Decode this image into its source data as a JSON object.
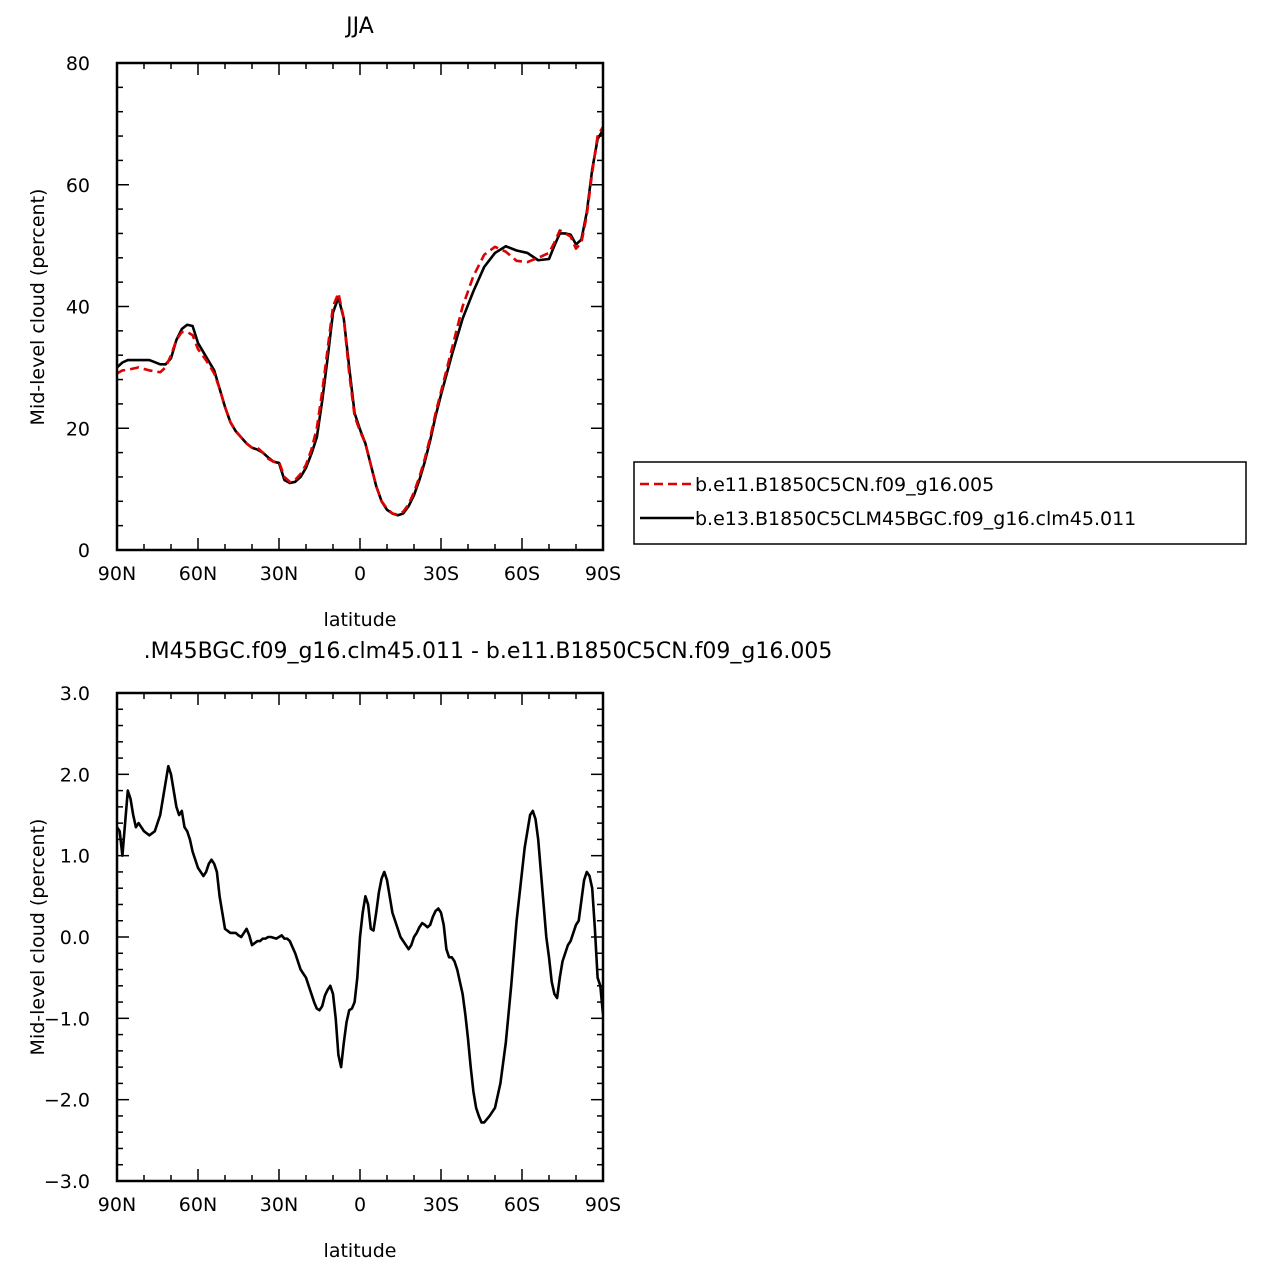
{
  "chart_data": [
    {
      "type": "line",
      "title": "JJA",
      "xlabel": "latitude",
      "ylabel": "Mid-level cloud (percent)",
      "xlim": [
        90,
        -90
      ],
      "ylim": [
        0,
        80
      ],
      "x_ticks": [
        {
          "value": 90,
          "label": "90N"
        },
        {
          "value": 60,
          "label": "60N"
        },
        {
          "value": 30,
          "label": "30N"
        },
        {
          "value": 0,
          "label": "0"
        },
        {
          "value": -30,
          "label": "30S"
        },
        {
          "value": -60,
          "label": "60S"
        },
        {
          "value": -90,
          "label": "90S"
        }
      ],
      "y_ticks": [
        {
          "value": 0,
          "label": "0"
        },
        {
          "value": 20,
          "label": "20"
        },
        {
          "value": 40,
          "label": "40"
        },
        {
          "value": 60,
          "label": "60"
        },
        {
          "value": 80,
          "label": "80"
        }
      ],
      "legend_position": "right",
      "series": [
        {
          "name": "b.e11.B1850C5CN.f09_g16.005",
          "color": "#e00000",
          "dash": "dashed",
          "x": [
            90,
            88,
            86,
            82,
            78,
            74,
            72,
            70,
            68,
            66,
            64,
            62,
            60,
            58,
            56,
            54,
            52,
            50,
            48,
            46,
            44,
            42,
            40,
            38,
            36,
            34,
            32,
            30,
            28,
            26,
            24,
            22,
            20,
            18,
            16,
            14,
            12,
            10,
            8,
            6,
            4,
            2,
            0,
            -2,
            -4,
            -6,
            -8,
            -10,
            -12,
            -14,
            -16,
            -18,
            -20,
            -22,
            -24,
            -26,
            -28,
            -30,
            -34,
            -38,
            -42,
            -46,
            -50,
            -54,
            -58,
            -62,
            -66,
            -70,
            -72,
            -74,
            -76,
            -78,
            -80,
            -82,
            -84,
            -86,
            -88,
            -90
          ],
          "values": [
            29.0,
            29.5,
            29.6,
            30.0,
            29.5,
            29.2,
            30.0,
            32.0,
            34.5,
            35.8,
            35.8,
            35.3,
            33.0,
            31.8,
            30.5,
            29.0,
            26.5,
            23.5,
            21.0,
            19.5,
            18.5,
            17.5,
            16.8,
            16.8,
            16.0,
            15.0,
            14.5,
            14.5,
            12.0,
            11.2,
            11.5,
            12.5,
            14.0,
            16.5,
            20.0,
            26.0,
            33.0,
            40.0,
            42.2,
            38.0,
            29.0,
            22.0,
            19.5,
            17.5,
            14.0,
            10.5,
            8.0,
            6.8,
            6.0,
            5.8,
            6.3,
            7.5,
            9.5,
            12.0,
            15.0,
            18.5,
            22.5,
            26.0,
            33.0,
            40.0,
            45.0,
            48.5,
            49.8,
            49.0,
            47.5,
            47.3,
            48.0,
            48.8,
            50.5,
            52.5,
            52.0,
            51.5,
            49.5,
            50.5,
            55.0,
            62.0,
            68.0,
            69.5
          ]
        },
        {
          "name": "b.e13.B1850C5CLM45BGC.f09_g16.clm45.011",
          "color": "#000000",
          "dash": "solid",
          "x": [
            90,
            88,
            86,
            82,
            78,
            74,
            72,
            70,
            68,
            66,
            64,
            62,
            60,
            58,
            56,
            54,
            52,
            50,
            48,
            46,
            44,
            42,
            40,
            38,
            36,
            34,
            32,
            30,
            28,
            26,
            24,
            22,
            20,
            18,
            16,
            14,
            12,
            10,
            8,
            6,
            4,
            2,
            0,
            -2,
            -4,
            -6,
            -8,
            -10,
            -12,
            -14,
            -16,
            -18,
            -20,
            -22,
            -24,
            -26,
            -28,
            -30,
            -34,
            -38,
            -42,
            -46,
            -50,
            -54,
            -58,
            -62,
            -66,
            -70,
            -72,
            -74,
            -76,
            -78,
            -80,
            -82,
            -84,
            -86,
            -88,
            -90
          ],
          "values": [
            30.0,
            30.8,
            31.2,
            31.2,
            31.2,
            30.5,
            30.5,
            31.5,
            34.5,
            36.3,
            37.0,
            36.8,
            34.0,
            32.5,
            31.0,
            29.5,
            26.5,
            23.5,
            21.0,
            19.5,
            18.5,
            17.5,
            16.8,
            16.5,
            16.0,
            15.2,
            14.5,
            14.3,
            11.5,
            11.0,
            11.2,
            12.0,
            13.5,
            15.8,
            18.5,
            24.5,
            31.5,
            39.0,
            41.5,
            38.0,
            30.0,
            22.5,
            19.8,
            17.5,
            14.0,
            10.5,
            8.0,
            6.6,
            6.0,
            5.7,
            6.0,
            7.2,
            9.0,
            11.5,
            14.5,
            18.0,
            22.0,
            25.5,
            32.0,
            38.0,
            42.5,
            46.5,
            48.8,
            49.9,
            49.2,
            48.8,
            47.6,
            47.8,
            50.0,
            52.0,
            52.0,
            51.8,
            50.2,
            51.0,
            55.5,
            62.5,
            67.5,
            69.0
          ]
        }
      ]
    },
    {
      "type": "line",
      "title": ".M45BGC.f09_g16.clm45.011  -  b.e11.B1850C5CN.f09_g16.005",
      "xlabel": "latitude",
      "ylabel": "Mid-level cloud (percent)",
      "xlim": [
        90,
        -90
      ],
      "ylim": [
        -3.0,
        3.0
      ],
      "x_ticks": [
        {
          "value": 90,
          "label": "90N"
        },
        {
          "value": 60,
          "label": "60N"
        },
        {
          "value": 30,
          "label": "30N"
        },
        {
          "value": 0,
          "label": "0"
        },
        {
          "value": -30,
          "label": "30S"
        },
        {
          "value": -60,
          "label": "60S"
        },
        {
          "value": -90,
          "label": "90S"
        }
      ],
      "y_ticks": [
        {
          "value": -3.0,
          "label": "−3.0"
        },
        {
          "value": -2.0,
          "label": "−2.0"
        },
        {
          "value": -1.0,
          "label": "−1.0"
        },
        {
          "value": 0.0,
          "label": "0.0"
        },
        {
          "value": 1.0,
          "label": "1.0"
        },
        {
          "value": 2.0,
          "label": "2.0"
        },
        {
          "value": 3.0,
          "label": "3.0"
        }
      ],
      "series": [
        {
          "color": "#000000",
          "dash": "solid",
          "x": [
            90,
            89,
            88,
            87,
            86,
            85,
            84,
            83,
            82,
            81,
            80,
            78,
            76,
            74,
            72,
            71,
            70,
            69,
            68,
            67,
            66,
            65,
            64,
            63,
            62,
            60,
            59,
            58,
            57,
            56,
            55,
            54,
            53,
            52,
            50,
            48,
            46,
            45,
            44,
            43,
            42,
            41,
            40,
            38,
            37,
            36,
            35,
            34,
            33,
            31,
            30,
            29,
            28,
            27,
            26,
            24,
            22,
            21,
            20,
            19,
            18,
            17,
            16,
            15,
            14,
            13,
            12,
            11,
            10,
            9,
            8,
            7,
            6,
            5,
            4,
            3,
            2,
            1,
            0,
            -1,
            -2,
            -3,
            -4,
            -5,
            -6,
            -7,
            -8,
            -9,
            -10,
            -11,
            -12,
            -13,
            -14,
            -15,
            -16,
            -17,
            -18,
            -19,
            -20,
            -21,
            -22,
            -23,
            -24,
            -25,
            -26,
            -27,
            -28,
            -29,
            -30,
            -31,
            -32,
            -33,
            -34,
            -35,
            -36,
            -37,
            -38,
            -39,
            -40,
            -41,
            -42,
            -43,
            -44,
            -45,
            -46,
            -48,
            -50,
            -52,
            -54,
            -56,
            -58,
            -60,
            -61,
            -62,
            -63,
            -64,
            -65,
            -66,
            -67,
            -68,
            -69,
            -70,
            -71,
            -72,
            -73,
            -74,
            -75,
            -76,
            -77,
            -78,
            -79,
            -80,
            -81,
            -82,
            -83,
            -84,
            -85,
            -86,
            -87,
            -88,
            -89,
            -90
          ],
          "values": [
            1.35,
            1.3,
            1.0,
            1.4,
            1.8,
            1.7,
            1.5,
            1.35,
            1.4,
            1.35,
            1.3,
            1.25,
            1.3,
            1.5,
            1.9,
            2.1,
            2.0,
            1.8,
            1.6,
            1.5,
            1.55,
            1.35,
            1.3,
            1.2,
            1.05,
            0.85,
            0.8,
            0.75,
            0.8,
            0.9,
            0.95,
            0.9,
            0.8,
            0.5,
            0.1,
            0.05,
            0.05,
            0.02,
            0.0,
            0.05,
            0.1,
            0.02,
            -0.1,
            -0.05,
            -0.05,
            -0.02,
            -0.02,
            0.0,
            0.0,
            -0.02,
            0.0,
            0.02,
            -0.02,
            -0.02,
            -0.05,
            -0.2,
            -0.4,
            -0.45,
            -0.5,
            -0.6,
            -0.7,
            -0.8,
            -0.88,
            -0.9,
            -0.85,
            -0.72,
            -0.65,
            -0.6,
            -0.7,
            -1.0,
            -1.45,
            -1.6,
            -1.3,
            -1.05,
            -0.9,
            -0.88,
            -0.8,
            -0.5,
            0.0,
            0.3,
            0.5,
            0.4,
            0.1,
            0.08,
            0.3,
            0.55,
            0.72,
            0.8,
            0.7,
            0.5,
            0.3,
            0.2,
            0.1,
            0.0,
            -0.05,
            -0.1,
            -0.15,
            -0.1,
            0.0,
            0.05,
            0.12,
            0.17,
            0.15,
            0.12,
            0.15,
            0.25,
            0.32,
            0.35,
            0.3,
            0.15,
            -0.15,
            -0.25,
            -0.25,
            -0.3,
            -0.4,
            -0.55,
            -0.7,
            -0.95,
            -1.25,
            -1.6,
            -1.9,
            -2.1,
            -2.2,
            -2.28,
            -2.28,
            -2.2,
            -2.1,
            -1.8,
            -1.3,
            -0.6,
            0.2,
            0.8,
            1.1,
            1.3,
            1.5,
            1.55,
            1.45,
            1.2,
            0.8,
            0.4,
            0.0,
            -0.25,
            -0.55,
            -0.7,
            -0.75,
            -0.5,
            -0.3,
            -0.2,
            -0.1,
            -0.05,
            0.05,
            0.15,
            0.2,
            0.45,
            0.7,
            0.8,
            0.75,
            0.6,
            0.1,
            -0.5,
            -0.6,
            -0.95
          ]
        }
      ]
    }
  ],
  "legend": [
    {
      "label": "b.e11.B1850C5CN.f09_g16.005"
    },
    {
      "label": "b.e13.B1850C5CLM45BGC.f09_g16.clm45.011"
    }
  ]
}
